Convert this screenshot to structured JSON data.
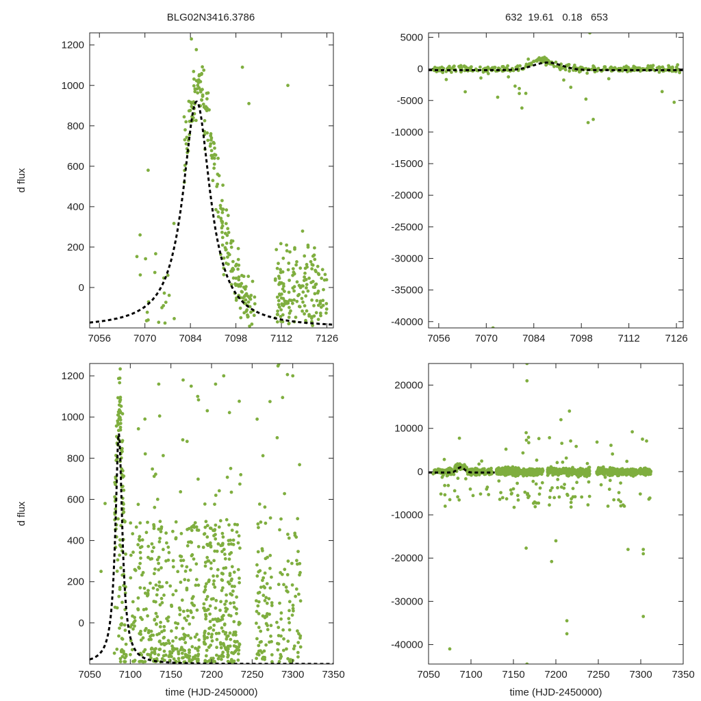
{
  "figure": {
    "left_title": "BLG02N3416.3786",
    "right_title": "632  19.61   0.18   653"
  },
  "colors": {
    "points": "#7fae3f",
    "model": "#000000",
    "axes": "#222222"
  },
  "chart_data": [
    {
      "id": "top-left",
      "type": "scatter",
      "xlabel": "",
      "ylabel": "d flux",
      "xlim": [
        7053,
        7128
      ],
      "ylim": [
        -200,
        1260
      ],
      "xticks": [
        7056,
        7070,
        7084,
        7098,
        7112,
        7126
      ],
      "yticks": [
        0,
        200,
        400,
        600,
        800,
        1000,
        1200
      ],
      "series": [
        {
          "name": "data",
          "style": "points"
        },
        {
          "name": "model",
          "style": "dashed",
          "t0": 7085.9,
          "peak": 920,
          "tE": 3.3,
          "u0": 0.6,
          "base": -200
        }
      ]
    },
    {
      "id": "top-right",
      "type": "scatter",
      "xlabel": "",
      "ylabel": "",
      "xlim": [
        7053,
        7128
      ],
      "ylim": [
        -41000,
        5700
      ],
      "xticks": [
        7056,
        7070,
        7084,
        7098,
        7112,
        7126
      ],
      "yticks": [
        5000,
        0,
        -5000,
        -10000,
        -15000,
        -20000,
        -25000,
        -30000,
        -35000,
        -40000
      ],
      "series": [
        {
          "name": "data",
          "style": "points"
        },
        {
          "name": "model",
          "style": "dashed",
          "t0": 7088,
          "peak": 1000,
          "tE": 6,
          "base": -200
        }
      ]
    },
    {
      "id": "bottom-left",
      "type": "scatter",
      "xlabel": "time (HJD-2450000)",
      "ylabel": "d flux",
      "xlim": [
        7050,
        7350
      ],
      "ylim": [
        -200,
        1260
      ],
      "xticks": [
        7050,
        7100,
        7150,
        7200,
        7250,
        7300,
        7350
      ],
      "yticks": [
        0,
        200,
        400,
        600,
        800,
        1000,
        1200
      ],
      "series": [
        {
          "name": "data",
          "style": "points"
        },
        {
          "name": "model",
          "style": "dashed",
          "t0": 7085.9,
          "peak": 920,
          "tE": 3.3,
          "u0": 0.6,
          "base": -200
        }
      ]
    },
    {
      "id": "bottom-right",
      "type": "scatter",
      "xlabel": "time (HJD-2450000)",
      "ylabel": "",
      "xlim": [
        7050,
        7350
      ],
      "ylim": [
        -44500,
        25000
      ],
      "xticks": [
        7050,
        7100,
        7150,
        7200,
        7250,
        7300,
        7350
      ],
      "yticks": [
        20000,
        10000,
        0,
        -10000,
        -20000,
        -30000,
        -40000
      ],
      "series": [
        {
          "name": "data",
          "style": "points"
        },
        {
          "name": "model",
          "style": "dashed",
          "t0": 7088,
          "peak": 1000,
          "tE": 6,
          "base": -200,
          "xmax": 7128
        }
      ]
    }
  ]
}
